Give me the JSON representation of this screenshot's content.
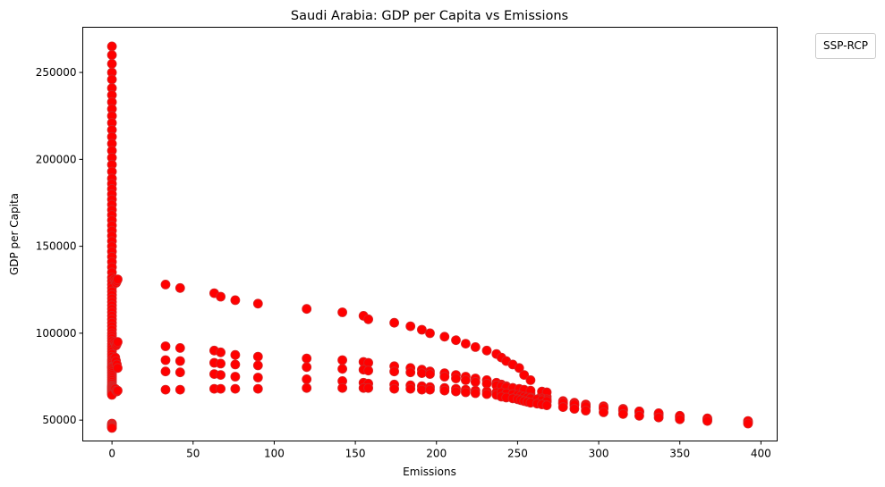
{
  "chart_data": {
    "type": "scatter",
    "title": "Saudi Arabia: GDP per Capita vs Emissions",
    "xlabel": "Emissions",
    "ylabel": "GDP per Capita",
    "xlim": [
      -18,
      410
    ],
    "ylim": [
      38000,
      276000
    ],
    "xticks": [
      0,
      50,
      100,
      150,
      200,
      250,
      300,
      350,
      400
    ],
    "yticks": [
      50000,
      100000,
      150000,
      200000,
      250000
    ],
    "grid": false,
    "legend": {
      "title": "SSP-RCP",
      "placement": "upper-right-outside"
    },
    "point_color": "#ff0000",
    "point_edge_color": "#d62728",
    "series": [
      {
        "x": [
          0,
          0,
          0,
          0,
          0,
          0,
          0,
          0,
          0,
          0,
          0,
          0,
          0,
          0,
          0,
          0,
          0,
          0,
          0,
          0,
          0,
          0,
          0,
          0,
          0,
          0,
          0,
          0,
          0,
          0,
          0,
          0,
          0,
          0,
          0,
          0,
          0,
          0,
          0,
          0,
          0,
          0,
          0,
          0,
          0,
          0,
          0,
          0,
          0,
          0,
          0,
          0,
          0,
          0,
          0,
          0,
          0,
          0,
          0,
          0,
          0,
          0,
          0,
          0,
          0,
          0,
          0,
          0,
          0,
          0,
          0,
          0,
          0,
          0,
          0,
          0,
          0,
          0,
          0,
          0,
          0,
          0,
          0,
          0,
          0,
          0,
          0,
          0,
          0,
          0,
          0,
          0,
          0,
          0,
          0,
          0,
          0,
          0,
          0,
          0
        ],
        "y": [
          265000,
          260000,
          255000,
          250000,
          246000,
          241000,
          237000,
          233000,
          229000,
          225000,
          221000,
          217000,
          213000,
          209000,
          205000,
          201000,
          197000,
          193000,
          189000,
          186000,
          183000,
          180000,
          177000,
          174000,
          171000,
          168000,
          165000,
          162000,
          159000,
          156000,
          153000,
          150000,
          147000,
          144000,
          141000,
          138000,
          135000,
          132000,
          130000,
          128000,
          126000,
          124000,
          122000,
          120000,
          118000,
          116000,
          114000,
          112000,
          110000,
          108000,
          106000,
          104000,
          102000,
          100000,
          98500,
          97000,
          95500,
          94000,
          92500,
          91000,
          89500,
          88000,
          86500,
          85000,
          84000,
          83000,
          82000,
          81000,
          80500,
          80000,
          79000,
          78000,
          77000,
          76000,
          75000,
          74000,
          73000,
          72000,
          71000,
          70000,
          69500,
          69000,
          68500,
          68000,
          67500,
          67000,
          66500,
          66000,
          65500,
          65000,
          64500,
          48000,
          47500,
          47000,
          46800,
          46500,
          46300,
          46000,
          45800,
          45500
        ]
      },
      {
        "x": [
          1.5,
          2,
          2.5,
          3,
          3.5,
          1.5,
          2,
          2.5,
          3,
          3.5,
          2,
          2.5,
          3,
          3.5,
          2,
          2.5,
          3,
          3.5
        ],
        "y": [
          131000,
          130000,
          129000,
          130000,
          131000,
          95000,
          94000,
          93000,
          94000,
          95000,
          86000,
          84000,
          82000,
          80000,
          68000,
          67000,
          66500,
          67000
        ]
      },
      {
        "x": [
          33,
          42,
          63,
          67,
          76,
          90,
          120,
          142,
          155,
          158,
          174,
          184,
          191,
          196,
          205,
          212,
          218,
          224,
          231,
          237,
          240,
          243,
          247,
          251,
          254,
          258
        ],
        "y": [
          128000,
          126000,
          123000,
          121000,
          119000,
          117000,
          114000,
          112000,
          110000,
          108000,
          106000,
          104000,
          102000,
          100000,
          98000,
          96000,
          94000,
          92000,
          90000,
          88000,
          86000,
          84000,
          82000,
          80000,
          76000,
          73000
        ]
      },
      {
        "x": [
          33,
          42,
          63,
          67,
          76,
          90,
          120,
          142,
          155,
          158,
          174,
          184,
          191,
          196,
          205,
          212,
          218,
          224,
          231,
          237,
          240,
          243,
          247,
          251,
          254,
          258,
          265,
          268
        ],
        "y": [
          92500,
          91500,
          90000,
          89000,
          87500,
          86500,
          85500,
          84500,
          83500,
          83000,
          81000,
          80000,
          79000,
          78000,
          77000,
          76000,
          75000,
          74000,
          73000,
          71500,
          70500,
          69500,
          68500,
          67500,
          66500,
          65500,
          64500,
          63500
        ]
      },
      {
        "x": [
          33,
          42,
          63,
          67,
          76,
          90,
          120,
          142,
          155,
          158,
          174,
          184,
          191,
          196,
          205,
          212,
          218,
          224,
          231,
          237,
          240,
          243,
          247,
          251,
          254,
          258,
          265,
          268
        ],
        "y": [
          84500,
          84000,
          83000,
          82500,
          82000,
          81500,
          80500,
          79500,
          79000,
          78500,
          78000,
          77500,
          77000,
          76500,
          75000,
          74000,
          73000,
          72000,
          71000,
          70000,
          69500,
          69000,
          68500,
          68000,
          67500,
          67000,
          66500,
          66000
        ]
      },
      {
        "x": [
          33,
          42,
          63,
          67,
          76,
          90,
          120,
          142,
          155,
          158,
          174,
          184,
          191,
          196,
          205,
          212,
          218,
          224,
          231,
          237,
          240,
          243,
          247,
          251,
          254,
          258,
          265,
          268,
          278,
          285,
          292,
          303,
          315,
          325,
          337,
          350,
          367,
          392
        ],
        "y": [
          78000,
          77500,
          76500,
          76000,
          75000,
          74500,
          73500,
          72500,
          71500,
          71000,
          70500,
          70000,
          69500,
          69000,
          68500,
          68000,
          67500,
          67000,
          66500,
          66000,
          65500,
          65000,
          64500,
          64000,
          63500,
          63000,
          62500,
          62000,
          61000,
          60000,
          59000,
          58000,
          56500,
          55000,
          53500,
          52000,
          50500,
          49000
        ]
      },
      {
        "x": [
          33,
          42,
          63,
          67,
          76,
          90,
          120,
          142,
          155,
          158,
          174,
          184,
          191,
          196,
          205,
          212,
          218,
          224,
          231,
          237,
          240,
          243,
          247,
          251,
          254,
          258,
          265,
          268,
          278,
          285,
          292,
          303,
          315,
          325,
          337,
          350,
          367,
          392
        ],
        "y": [
          67500,
          67500,
          68000,
          68000,
          68000,
          68000,
          68500,
          68500,
          68500,
          68500,
          68000,
          68000,
          67500,
          67500,
          67000,
          66500,
          66000,
          65500,
          65000,
          64500,
          64000,
          63500,
          63000,
          62500,
          62000,
          61500,
          61000,
          60500,
          59500,
          58500,
          57500,
          56500,
          55500,
          54500,
          53000,
          51500,
          50000,
          48500
        ]
      },
      {
        "x": [
          240,
          243,
          247,
          250,
          252,
          254,
          256,
          258,
          262,
          265,
          268,
          278,
          285,
          292,
          303,
          315,
          325,
          337,
          350,
          367,
          392
        ],
        "y": [
          66000,
          65500,
          65000,
          64500,
          64000,
          63500,
          63000,
          62500,
          62000,
          61500,
          61000,
          60000,
          59000,
          58000,
          57000,
          56000,
          55000,
          54000,
          52500,
          51000,
          49500
        ]
      },
      {
        "x": [
          240,
          243,
          247,
          250,
          252,
          254,
          256,
          258,
          262,
          265,
          268,
          278,
          285,
          292,
          303,
          315,
          325,
          337,
          350,
          367,
          392
        ],
        "y": [
          63500,
          63000,
          62500,
          62000,
          61500,
          61000,
          60500,
          60000,
          59500,
          59000,
          58500,
          57500,
          56500,
          55500,
          54500,
          53500,
          52500,
          51500,
          50500,
          49500,
          48000
        ]
      }
    ]
  }
}
